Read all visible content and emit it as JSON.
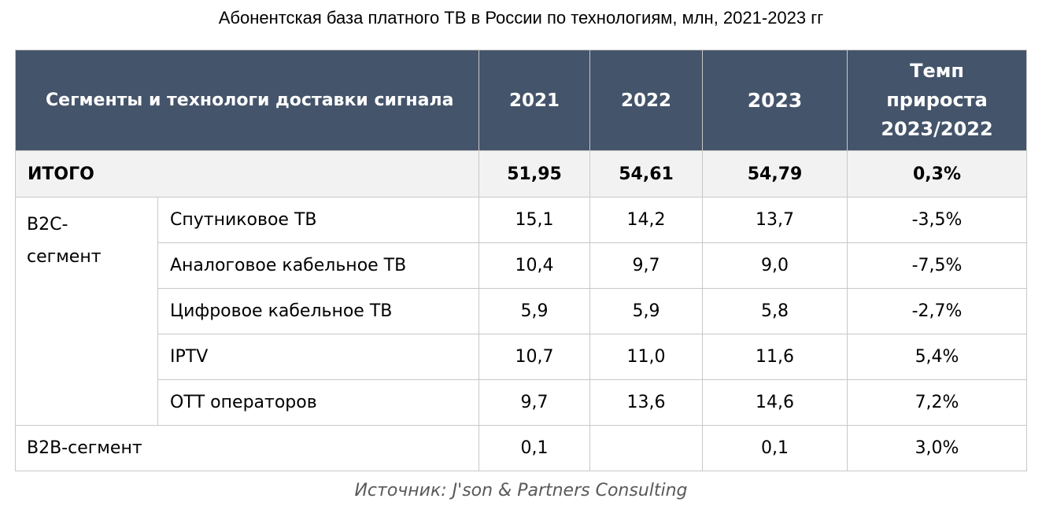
{
  "title": "Абонентская база платного ТВ в России по технологиям, млн, 2021-2023 гг",
  "header": {
    "segment": "Сегменты и технологи доставки сигнала",
    "years": [
      "2021",
      "2022",
      "2023"
    ],
    "growth_line1": "Темп",
    "growth_line2": "прироста",
    "growth_line3": "2023/2022"
  },
  "total": {
    "label": "ИТОГО",
    "values": [
      "51,95",
      "54,61",
      "54,79"
    ],
    "growth": "0,3%"
  },
  "b2c": {
    "group_line1": "B2C-",
    "group_line2": "сегмент",
    "rows": [
      {
        "tech": "Спутниковое ТВ",
        "values": [
          "15,1",
          "14,2",
          "13,7"
        ],
        "growth": "-3,5%"
      },
      {
        "tech": "Аналоговое кабельное ТВ",
        "values": [
          "10,4",
          "9,7",
          "9,0"
        ],
        "growth": "-7,5%"
      },
      {
        "tech": "Цифровое кабельное ТВ",
        "values": [
          "5,9",
          "5,9",
          "5,8"
        ],
        "growth": "-2,7%"
      },
      {
        "tech": "IPTV",
        "values": [
          "10,7",
          "11,0",
          "11,6"
        ],
        "growth": "5,4%"
      },
      {
        "tech": "ОТТ операторов",
        "values": [
          "9,7",
          "13,6",
          "14,6"
        ],
        "growth": "7,2%"
      }
    ]
  },
  "b2b": {
    "label": "B2B-сегмент",
    "values": [
      "0,1",
      "",
      "0,1"
    ],
    "growth": "3,0%"
  },
  "source": "Источник: J'son & Partners Consulting",
  "colors": {
    "header_bg": "#44546a",
    "total_bg": "#f2f2f2",
    "border": "#c8c8c8"
  },
  "chart_data": {
    "type": "table",
    "title": "Абонентская база платного ТВ в России по технологиям, млн, 2021-2023 гг",
    "columns": [
      "Сегменты и технологи доставки сигнала",
      "2021",
      "2022",
      "2023",
      "Темп прироста 2023/2022"
    ],
    "rows": [
      [
        "ИТОГО",
        51.95,
        54.61,
        54.79,
        "0,3%"
      ],
      [
        "B2C-сегмент / Спутниковое ТВ",
        15.1,
        14.2,
        13.7,
        "-3,5%"
      ],
      [
        "B2C-сегмент / Аналоговое кабельное ТВ",
        10.4,
        9.7,
        9.0,
        "-7,5%"
      ],
      [
        "B2C-сегмент / Цифровое кабельное ТВ",
        5.9,
        5.9,
        5.8,
        "-2,7%"
      ],
      [
        "B2C-сегмент / IPTV",
        10.7,
        11.0,
        11.6,
        "5,4%"
      ],
      [
        "B2C-сегмент / ОТТ операторов",
        9.7,
        13.6,
        14.6,
        "7,2%"
      ],
      [
        "B2B-сегмент",
        0.1,
        null,
        0.1,
        "3,0%"
      ]
    ]
  }
}
